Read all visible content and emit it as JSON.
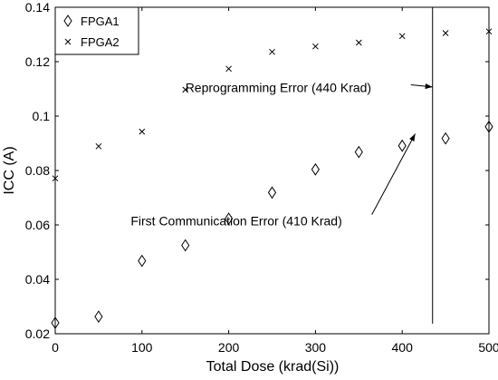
{
  "chart_data": {
    "type": "scatter",
    "title": "",
    "xlabel": "Total Dose (krad(Si))",
    "ylabel": "ICC (A)",
    "xlim": [
      0,
      500
    ],
    "ylim": [
      0.02,
      0.14
    ],
    "xticks": [
      0,
      100,
      200,
      300,
      400,
      500
    ],
    "yticks": [
      0.02,
      0.04,
      0.06,
      0.08,
      0.1,
      0.12,
      0.14
    ],
    "xtick_labels": [
      "0",
      "100",
      "200",
      "300",
      "400",
      "500"
    ],
    "ytick_labels": [
      "0.02",
      "0.04",
      "0.06",
      "0.08",
      "0.1",
      "0.12",
      "0.14"
    ],
    "grid": false,
    "legend_position": "top-left",
    "series": [
      {
        "name": "FPGA1",
        "marker": "diamond",
        "color": "#000000",
        "x": [
          0,
          50,
          100,
          150,
          200,
          250,
          300,
          350,
          400,
          450,
          500
        ],
        "y": [
          0.024,
          0.0263,
          0.0468,
          0.0525,
          0.0623,
          0.0719,
          0.0804,
          0.0868,
          0.0891,
          0.0918,
          0.0961
        ]
      },
      {
        "name": "FPGA2",
        "marker": "x",
        "color": "#000000",
        "x": [
          0,
          50,
          100,
          150,
          200,
          250,
          300,
          350,
          400,
          450,
          500
        ],
        "y": [
          0.0771,
          0.0889,
          0.0943,
          0.1097,
          0.1174,
          0.1236,
          0.1256,
          0.127,
          0.1294,
          0.1305,
          0.1311
        ]
      }
    ],
    "vline": {
      "x": 435,
      "y_from": 0.0237,
      "y_to": 0.14
    },
    "annotations": [
      {
        "text": "Reprogramming Error (440 Krad)",
        "text_at": [
          150,
          0.1105
        ],
        "arrow_from": [
          410,
          0.1115
        ],
        "arrow_to": [
          435,
          0.1107
        ]
      },
      {
        "text": "First Communication Error (410 Krad)",
        "text_at": [
          87,
          0.0615
        ],
        "arrow_from": [
          365,
          0.0638
        ],
        "arrow_to": [
          415,
          0.0935
        ]
      }
    ]
  }
}
